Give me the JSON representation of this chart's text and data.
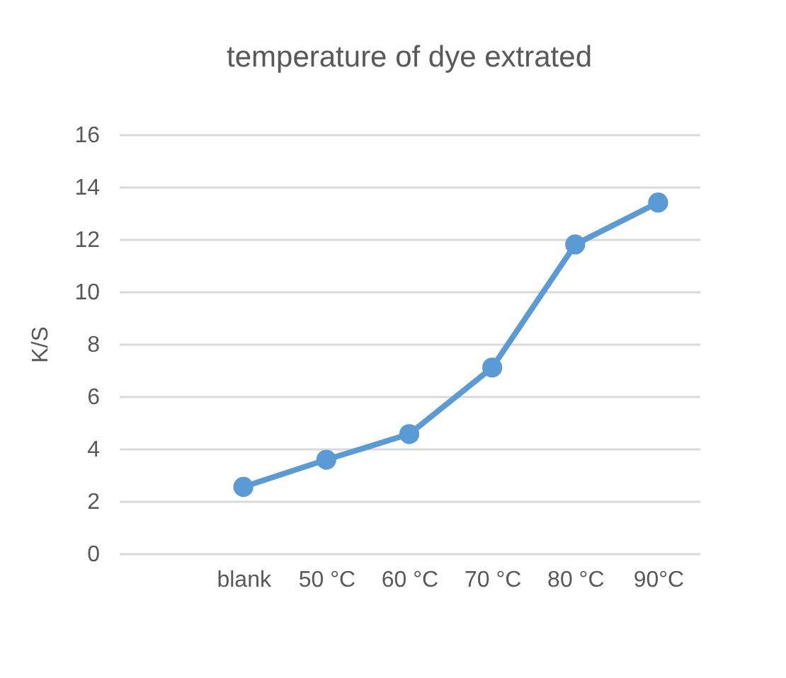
{
  "chart_data": {
    "type": "line",
    "title": "temperature of dye extrated",
    "ylabel": "K/S",
    "categories": [
      null,
      "blank",
      "50 °C",
      "60 °C",
      "70 °C",
      "80 °C",
      "90°C"
    ],
    "series": [
      {
        "color": "#5b9bd5",
        "values": [
          null,
          2.54,
          3.58,
          4.56,
          7.1,
          11.8,
          13.4
        ]
      }
    ],
    "ylim": [
      0,
      16
    ],
    "yticks": [
      0,
      2,
      4,
      6,
      8,
      10,
      12,
      14,
      16
    ],
    "grid": "y",
    "marker": "circle",
    "line_style": "solid"
  }
}
